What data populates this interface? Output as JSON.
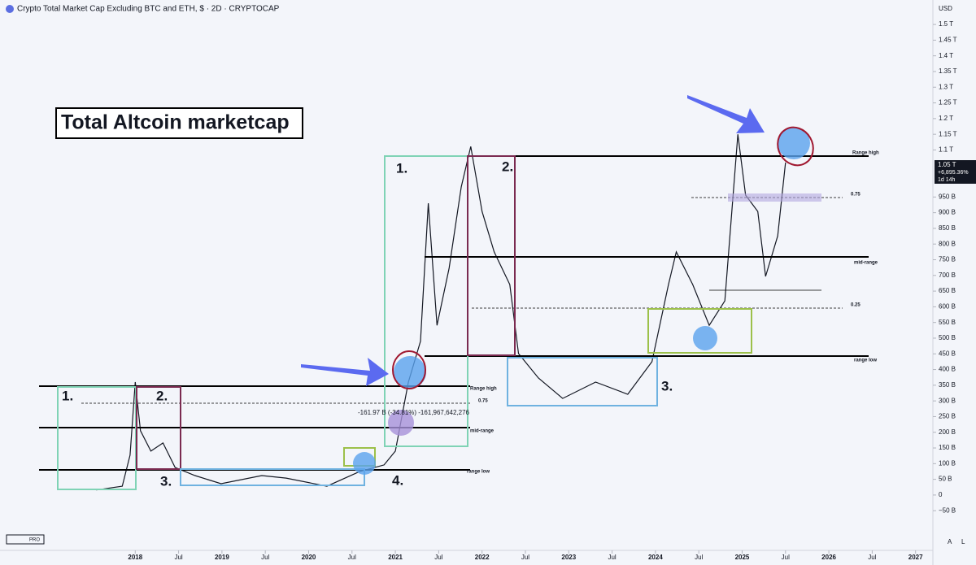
{
  "header": {
    "title": "Crypto Total Market Cap Excluding BTC and ETH, $ · 2D · CRYPTOCAP",
    "currency": "USD",
    "logo": "PRO",
    "buttons": [
      "A",
      "L"
    ]
  },
  "chart_data": {
    "type": "line",
    "color": "#131722",
    "x": [
      2017.55,
      2017.85,
      2017.94,
      2018.0,
      2018.06,
      2018.18,
      2018.32,
      2018.46,
      2018.69,
      2018.99,
      2019.46,
      2019.74,
      2020.21,
      2020.59,
      2020.87,
      2021.0,
      2021.15,
      2021.29,
      2021.38,
      2021.48,
      2021.62,
      2021.76,
      2021.87,
      2022.0,
      2022.14,
      2022.32,
      2022.42,
      2022.65,
      2022.93,
      2023.31,
      2023.68,
      2023.96,
      2024.15,
      2024.24,
      2024.43,
      2024.62,
      2024.8,
      2024.95,
      2025.04,
      2025.18,
      2025.27,
      2025.41,
      2025.5
    ],
    "values": [
      16,
      28,
      127,
      360,
      205,
      140,
      166,
      88,
      62,
      36,
      62,
      54,
      28,
      75,
      96,
      140,
      360,
      490,
      930,
      541,
      723,
      982,
      1111,
      904,
      775,
      671,
      451,
      373,
      308,
      360,
      321,
      425,
      671,
      775,
      671,
      541,
      619,
      1150,
      956,
      904,
      697,
      826,
      1060
    ],
    "xlim": [
      2016.44,
      2027.2
    ],
    "xticks": [
      2018,
      {
        "value": 2018.5,
        "label": "Jul"
      },
      2019,
      {
        "value": 2019.5,
        "label": "Jul"
      },
      2020,
      {
        "value": 2020.5,
        "label": "Jul"
      },
      2021,
      {
        "value": 2021.5,
        "label": "Jul"
      },
      2022,
      {
        "value": 2022.5,
        "label": "Jul"
      },
      2023,
      {
        "value": 2023.5,
        "label": "Jul"
      },
      2024,
      {
        "value": 2024.5,
        "label": "Jul"
      },
      2025,
      {
        "value": 2025.5,
        "label": "Jul"
      },
      2026,
      {
        "value": 2026.5,
        "label": "Jul"
      },
      2027
    ],
    "ylim": [
      -192,
      1578
    ],
    "yticks": [
      {
        "value": 1500,
        "label": "1.5 T"
      },
      {
        "value": 1450,
        "label": "1.45 T"
      },
      {
        "value": 1400,
        "label": "1.4 T"
      },
      {
        "value": 1350,
        "label": "1.35 T"
      },
      {
        "value": 1300,
        "label": "1.3 T"
      },
      {
        "value": 1250,
        "label": "1.25 T"
      },
      {
        "value": 1200,
        "label": "1.2 T"
      },
      {
        "value": 1150,
        "label": "1.15 T"
      },
      {
        "value": 1100,
        "label": "1.1 T"
      },
      {
        "value": 950,
        "label": "950 B"
      },
      {
        "value": 900,
        "label": "900 B"
      },
      {
        "value": 850,
        "label": "850 B"
      },
      {
        "value": 800,
        "label": "800 B"
      },
      {
        "value": 750,
        "label": "750 B"
      },
      {
        "value": 700,
        "label": "700 B"
      },
      {
        "value": 650,
        "label": "650 B"
      },
      {
        "value": 600,
        "label": "600 B"
      },
      {
        "value": 550,
        "label": "550 B"
      },
      {
        "value": 500,
        "label": "500 B"
      },
      {
        "value": 450,
        "label": "450 B"
      },
      {
        "value": 400,
        "label": "400 B"
      },
      {
        "value": 350,
        "label": "350 B"
      },
      {
        "value": 300,
        "label": "300 B"
      },
      {
        "value": 250,
        "label": "250 B"
      },
      {
        "value": 200,
        "label": "200 B"
      },
      {
        "value": 150,
        "label": "150 B"
      },
      {
        "value": 100,
        "label": "100 B"
      },
      {
        "value": 50,
        "label": "50 B"
      },
      0,
      {
        "value": -50,
        "label": "−50 B"
      }
    ],
    "annotations": [
      "Total Altcoin marketcap",
      "1.",
      "2.",
      "3.",
      "4.",
      "1.",
      "2.",
      "3.",
      "Range high",
      "0.75",
      "mid-range",
      "range low",
      "-161.97 B (-34.81%)  -161,967,642,276",
      "Range high",
      "0.75",
      "mid-range",
      "0.25",
      "range low",
      "1.05 T",
      "+6,895.36%",
      "1d 14h"
    ]
  }
}
